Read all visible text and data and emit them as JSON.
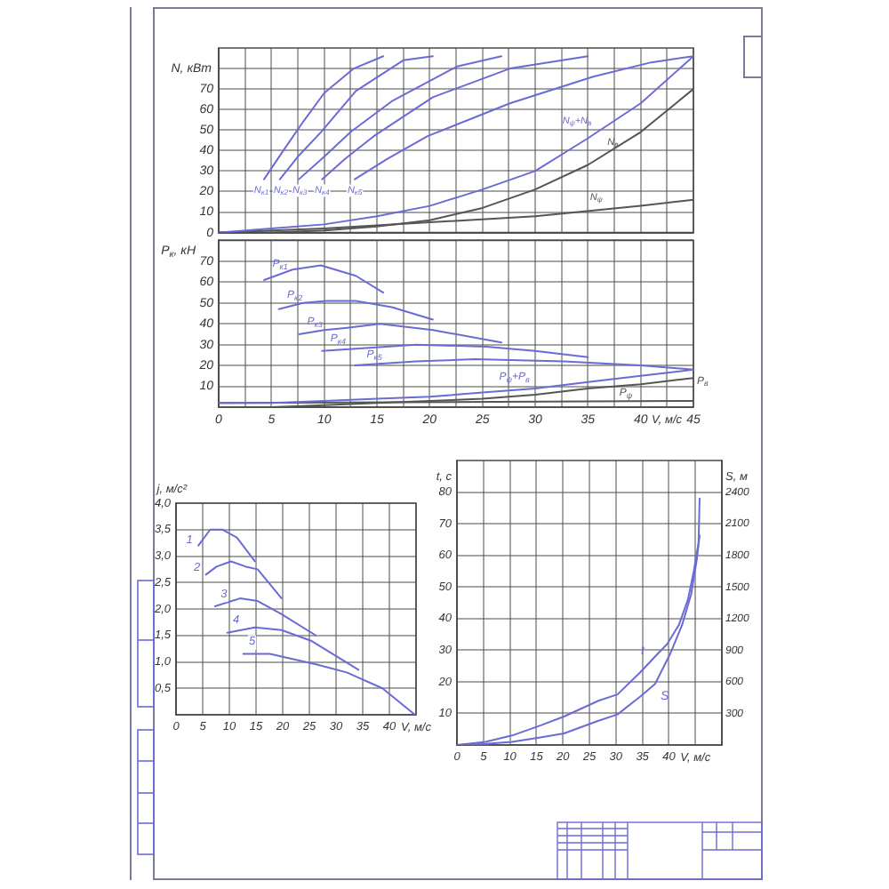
{
  "chart_data": [
    {
      "type": "line",
      "ylabel": "N, кВт",
      "xlim": [
        0,
        45
      ],
      "xticks": [
        0,
        {
          "value": 2.5,
          "label": null
        },
        5,
        {
          "value": 7.5,
          "label": null
        },
        10,
        {
          "value": 12.5,
          "label": null
        },
        15,
        {
          "value": 17.5,
          "label": null
        },
        20,
        {
          "value": 22.5,
          "label": null
        },
        25,
        {
          "value": 27.5,
          "label": null
        },
        30,
        {
          "value": 32.5,
          "label": null
        },
        35,
        {
          "value": 37.5,
          "label": null
        },
        40,
        {
          "value": 42.5,
          "label": null
        },
        45
      ],
      "ylim": [
        0,
        90
      ],
      "yticks": [
        0,
        10,
        20,
        30,
        40,
        50,
        60,
        70,
        {
          "value": 80,
          "label": null
        }
      ],
      "grid": true,
      "tick_labels": "y",
      "series": [
        {
          "name": "N$_{к1}$",
          "color": "#6b6bd6",
          "x": [
            4.3,
            6,
            8,
            10,
            12.8,
            15.6
          ],
          "values": [
            26,
            39,
            54,
            68,
            80,
            86
          ]
        },
        {
          "name": "N$_{к2}$",
          "color": "#6b6bd6",
          "x": [
            5.8,
            7.5,
            9.7,
            13,
            17.5,
            20.3
          ],
          "values": [
            26,
            37,
            49,
            69,
            84,
            86
          ]
        },
        {
          "name": "N$_{к3}$",
          "color": "#6b6bd6",
          "x": [
            7.6,
            10,
            12.5,
            16.4,
            22.6,
            26.8
          ],
          "values": [
            26,
            37,
            49,
            64,
            81,
            86
          ]
        },
        {
          "name": "N$_{к4}$",
          "color": "#6b6bd6",
          "x": [
            9.8,
            12,
            14.7,
            20.3,
            27.6,
            35
          ],
          "values": [
            26,
            36,
            47,
            66,
            80,
            86
          ]
        },
        {
          "name": "N$_{к5}$",
          "color": "#6b6bd6",
          "x": [
            12.9,
            16,
            19.8,
            27.6,
            35.5,
            41,
            45
          ],
          "values": [
            26,
            36,
            47,
            63,
            76,
            83,
            86
          ]
        },
        {
          "name": "N$_{ψ}$+N$_{в}$",
          "color": "#6b6bd6",
          "x": [
            0,
            5,
            10,
            15,
            20,
            25,
            30,
            35,
            40,
            45
          ],
          "values": [
            0,
            2,
            4,
            8,
            13,
            21,
            30,
            46,
            63,
            86
          ]
        },
        {
          "name": "N$_{в}$",
          "color": "#555555",
          "x": [
            0,
            5,
            10,
            15,
            20,
            25,
            30,
            35,
            40,
            45
          ],
          "values": [
            0,
            0,
            1,
            3,
            6,
            12,
            21,
            33,
            49,
            70
          ]
        },
        {
          "name": "N$_{ψ}$",
          "color": "#555555",
          "x": [
            0,
            10,
            20,
            30,
            40,
            45
          ],
          "values": [
            0,
            2,
            5,
            8,
            13,
            16
          ]
        }
      ]
    },
    {
      "type": "line",
      "ylabel": "P$_{к}$, кН",
      "xlabel": "V, м/с",
      "xlim": [
        0,
        45
      ],
      "xticks": [
        0,
        {
          "value": 2.5,
          "label": null
        },
        5,
        {
          "value": 7.5,
          "label": null
        },
        10,
        {
          "value": 12.5,
          "label": null
        },
        15,
        {
          "value": 17.5,
          "label": null
        },
        20,
        {
          "value": 22.5,
          "label": null
        },
        25,
        {
          "value": 27.5,
          "label": null
        },
        30,
        {
          "value": 32.5,
          "label": null
        },
        35,
        {
          "value": 37.5,
          "label": null
        },
        40,
        {
          "value": 42.5,
          "label": null
        },
        45
      ],
      "ylim": [
        0,
        80
      ],
      "yticks": [
        {
          "value": 0,
          "label": null
        },
        10,
        20,
        30,
        40,
        50,
        60,
        70,
        {
          "value": 80,
          "label": null
        }
      ],
      "grid": true,
      "series": [
        {
          "name": "P$_{к1}$",
          "color": "#6b6bd6",
          "x": [
            4.3,
            7,
            9.7,
            13,
            15.6
          ],
          "values": [
            61,
            66,
            68,
            63,
            55
          ]
        },
        {
          "name": "P$_{к2}$",
          "color": "#6b6bd6",
          "x": [
            5.7,
            8,
            10.2,
            13,
            16.4,
            20.3
          ],
          "values": [
            47,
            50,
            51,
            51,
            48,
            42
          ]
        },
        {
          "name": "P$_{к3}$",
          "color": "#6b6bd6",
          "x": [
            7.6,
            10,
            12,
            15.3,
            20.3,
            26.8
          ],
          "values": [
            35,
            37,
            38,
            40,
            37,
            31
          ]
        },
        {
          "name": "P$_{к4}$",
          "color": "#6b6bd6",
          "x": [
            9.8,
            13,
            18.7,
            25.4,
            30,
            35
          ],
          "values": [
            27,
            28,
            30,
            29,
            27,
            24
          ]
        },
        {
          "name": "P$_{к5}$",
          "color": "#6b6bd6",
          "x": [
            12.9,
            18.7,
            24.3,
            32.7,
            40,
            45
          ],
          "values": [
            20,
            22,
            23,
            22,
            20,
            18
          ]
        },
        {
          "name": "P$_{ψ}$+P$_{в}$",
          "color": "#6b6bd6",
          "x": [
            0,
            5,
            10,
            15,
            20,
            25,
            30,
            35,
            40,
            45
          ],
          "values": [
            2,
            2,
            3,
            4,
            5,
            7,
            9,
            12,
            15,
            18
          ]
        },
        {
          "name": "P$_{в}$",
          "color": "#555555",
          "x": [
            0,
            5,
            10,
            15,
            20,
            25,
            30,
            35,
            40,
            45
          ],
          "values": [
            0,
            0,
            1,
            2,
            3,
            4,
            6,
            9,
            11,
            14
          ]
        },
        {
          "name": "P$_{ψ}$",
          "color": "#555555",
          "x": [
            0,
            45
          ],
          "values": [
            2,
            3
          ]
        }
      ]
    },
    {
      "type": "line",
      "ylabel": "j, м/с²",
      "xlabel": "V, м/с",
      "xlim": [
        0,
        45
      ],
      "xticks": [
        0,
        5,
        10,
        15,
        20,
        25,
        30,
        35,
        40,
        {
          "value": 45,
          "label": null
        }
      ],
      "ylim": [
        0,
        4
      ],
      "yticks": [
        {
          "value": 0.5,
          "label": "0,5"
        },
        {
          "value": 1,
          "label": "1,0"
        },
        {
          "value": 1.5,
          "label": "1,5"
        },
        {
          "value": 2,
          "label": "2,0"
        },
        {
          "value": 2.5,
          "label": "2,5"
        },
        {
          "value": 3,
          "label": "3,0"
        },
        {
          "value": 3.5,
          "label": "3,5"
        },
        {
          "value": 4,
          "label": "4,0"
        }
      ],
      "grid": true,
      "series": [
        {
          "name": "1",
          "color": "#6b6bd6",
          "x": [
            4.2,
            6.4,
            8.7,
            11.4,
            14.8
          ],
          "values": [
            3.2,
            3.5,
            3.5,
            3.35,
            2.9
          ]
        },
        {
          "name": "2",
          "color": "#6b6bd6",
          "x": [
            5.6,
            7.6,
            10.3,
            13.1,
            15.3,
            19.8
          ],
          "values": [
            2.65,
            2.8,
            2.9,
            2.8,
            2.75,
            2.2
          ]
        },
        {
          "name": "3",
          "color": "#6b6bd6",
          "x": [
            7.3,
            12,
            15.3,
            19.8,
            26.2
          ],
          "values": [
            2.05,
            2.2,
            2.15,
            1.9,
            1.5
          ]
        },
        {
          "name": "4",
          "color": "#6b6bd6",
          "x": [
            9.6,
            14.8,
            19.8,
            25.3,
            34.2
          ],
          "values": [
            1.55,
            1.65,
            1.6,
            1.4,
            0.85
          ]
        },
        {
          "name": "5",
          "color": "#6b6bd6",
          "x": [
            12.6,
            17.6,
            22,
            26.4,
            32,
            38.7,
            44.8
          ],
          "values": [
            1.15,
            1.15,
            1.05,
            0.95,
            0.8,
            0.5,
            0
          ]
        }
      ]
    },
    {
      "type": "line",
      "ylabel": "t, с",
      "y2label": "S, м",
      "xlabel": "V, м/с",
      "xlim": [
        0,
        50
      ],
      "xticks": [
        0,
        5,
        10,
        15,
        20,
        25,
        30,
        35,
        40,
        {
          "value": 45,
          "label": null
        }
      ],
      "ylim": [
        0,
        90
      ],
      "yticks": [
        10,
        20,
        30,
        40,
        50,
        60,
        70,
        80
      ],
      "y2lim": [
        0,
        2700
      ],
      "y2ticks": [
        300,
        600,
        900,
        1200,
        1500,
        1800,
        2100,
        2400
      ],
      "grid": true,
      "series": [
        {
          "name": "t",
          "color": "#6b6bd6",
          "x": [
            0,
            5.4,
            10.4,
            15.5,
            20.2,
            26.7,
            30.3,
            34.6,
            37.4,
            39.7,
            41.9,
            43.6,
            44.7,
            45.6,
            45.8
          ],
          "values": [
            0,
            1,
            3,
            6,
            9,
            14,
            16,
            23,
            28,
            32,
            38,
            46,
            55,
            64,
            78
          ]
        },
        {
          "name": "S",
          "color": "#6b6bd6",
          "axis": "y2",
          "x": [
            0,
            5.4,
            10.4,
            15.5,
            20.2,
            26.7,
            30.3,
            34.6,
            37.4,
            40.2,
            42.5,
            44.2,
            45.3,
            45.8
          ],
          "values": [
            0,
            10,
            30,
            70,
            110,
            230,
            290,
            460,
            580,
            860,
            1140,
            1430,
            1770,
            1990
          ]
        }
      ]
    }
  ]
}
